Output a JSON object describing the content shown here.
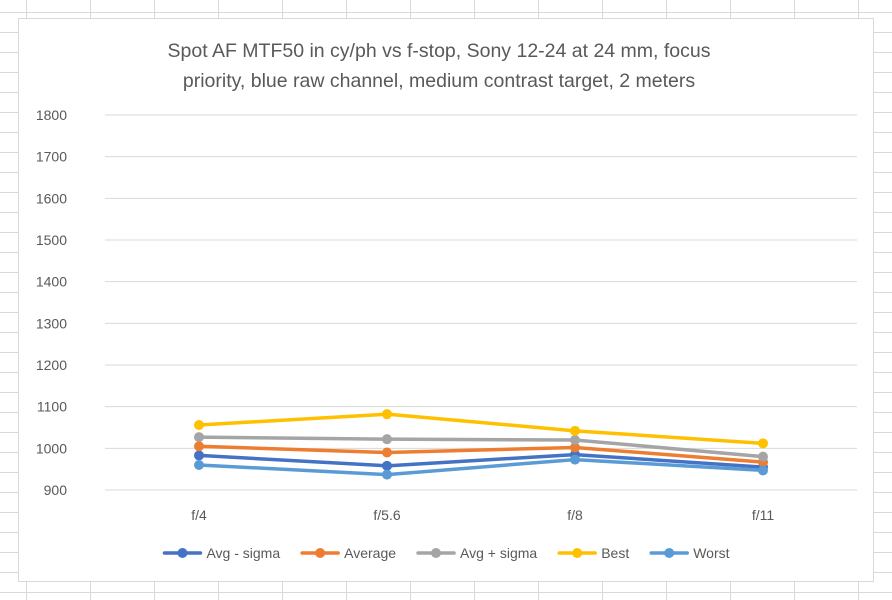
{
  "chart_data": {
    "type": "line",
    "title_lines": [
      "Spot AF MTF50 in cy/ph vs f-stop, Sony 12-24 at 24 mm, focus",
      "priority, blue raw channel, medium contrast target, 2 meters"
    ],
    "xlabel": "",
    "ylabel": "",
    "categories": [
      "f/4",
      "f/5.6",
      "f/8",
      "f/11"
    ],
    "ylim": [
      900,
      1800
    ],
    "yticks": [
      900,
      1000,
      1100,
      1200,
      1300,
      1400,
      1500,
      1600,
      1700,
      1800
    ],
    "grid": true,
    "legend_position": "bottom",
    "series": [
      {
        "name": "Avg - sigma",
        "color": "#4472C4",
        "values": [
          983,
          958,
          985,
          955
        ]
      },
      {
        "name": "Average",
        "color": "#ED7D31",
        "values": [
          1005,
          990,
          1002,
          967
        ]
      },
      {
        "name": "Avg + sigma",
        "color": "#A5A5A5",
        "values": [
          1027,
          1022,
          1020,
          980
        ]
      },
      {
        "name": "Best",
        "color": "#FFC000",
        "values": [
          1056,
          1082,
          1042,
          1012
        ]
      },
      {
        "name": "Worst",
        "color": "#5B9BD5",
        "values": [
          960,
          937,
          973,
          947
        ]
      }
    ]
  }
}
